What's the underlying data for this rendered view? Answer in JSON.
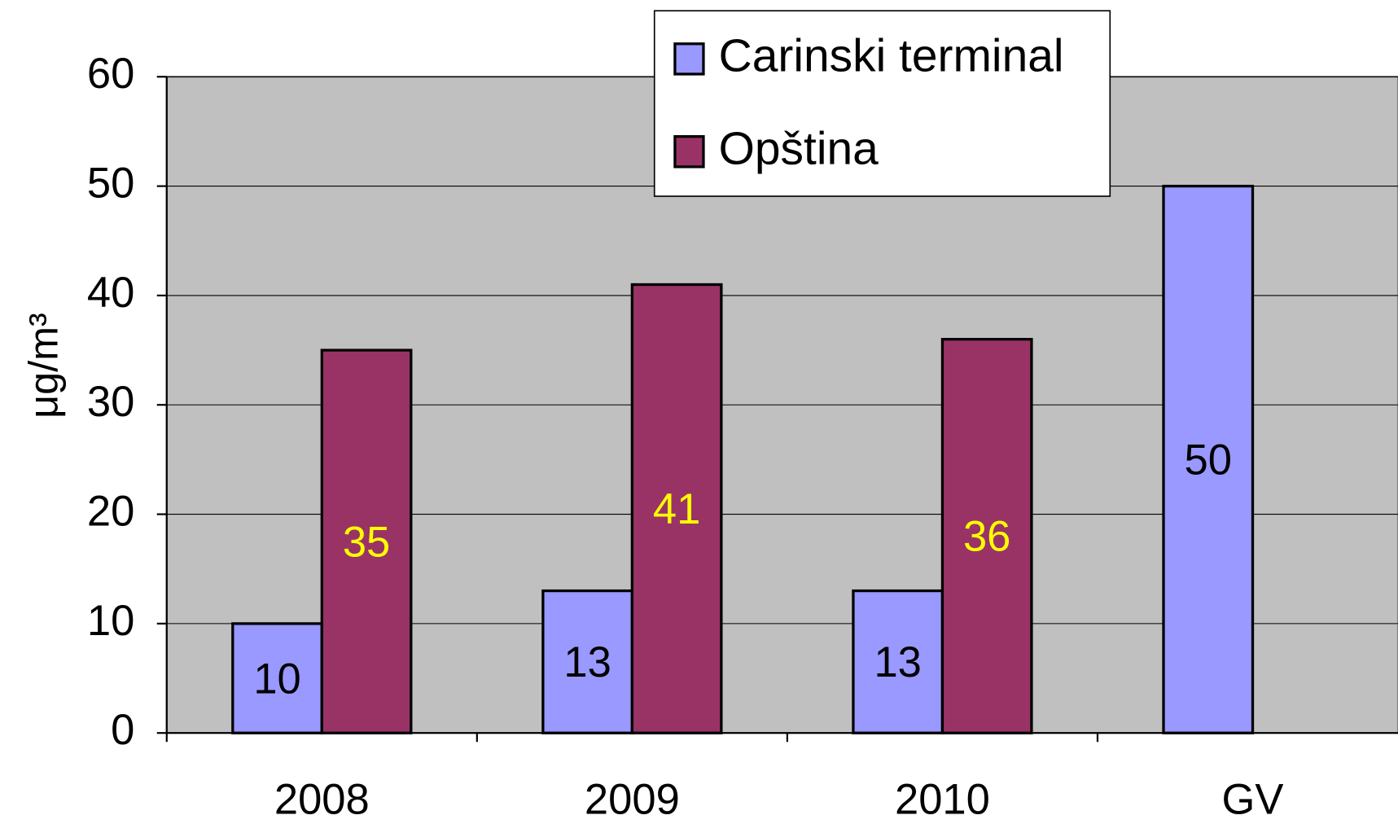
{
  "chart_data": {
    "type": "bar",
    "y_label": "μg/m³",
    "categories": [
      "2008",
      "2009",
      "2010",
      "GV"
    ],
    "series": [
      {
        "name": "Carinski terminal",
        "color": "#9999ff",
        "label_color": "#000000",
        "values": [
          10,
          13,
          13,
          50
        ]
      },
      {
        "name": "Opština",
        "color": "#993366",
        "label_color": "#ffff00",
        "values": [
          35,
          41,
          36,
          null
        ]
      }
    ],
    "ylim": [
      0,
      60
    ],
    "yticks": [
      0,
      10,
      20,
      30,
      40,
      50,
      60
    ],
    "grid": true,
    "plot_background": "#c0c0c0",
    "legend": "top"
  }
}
